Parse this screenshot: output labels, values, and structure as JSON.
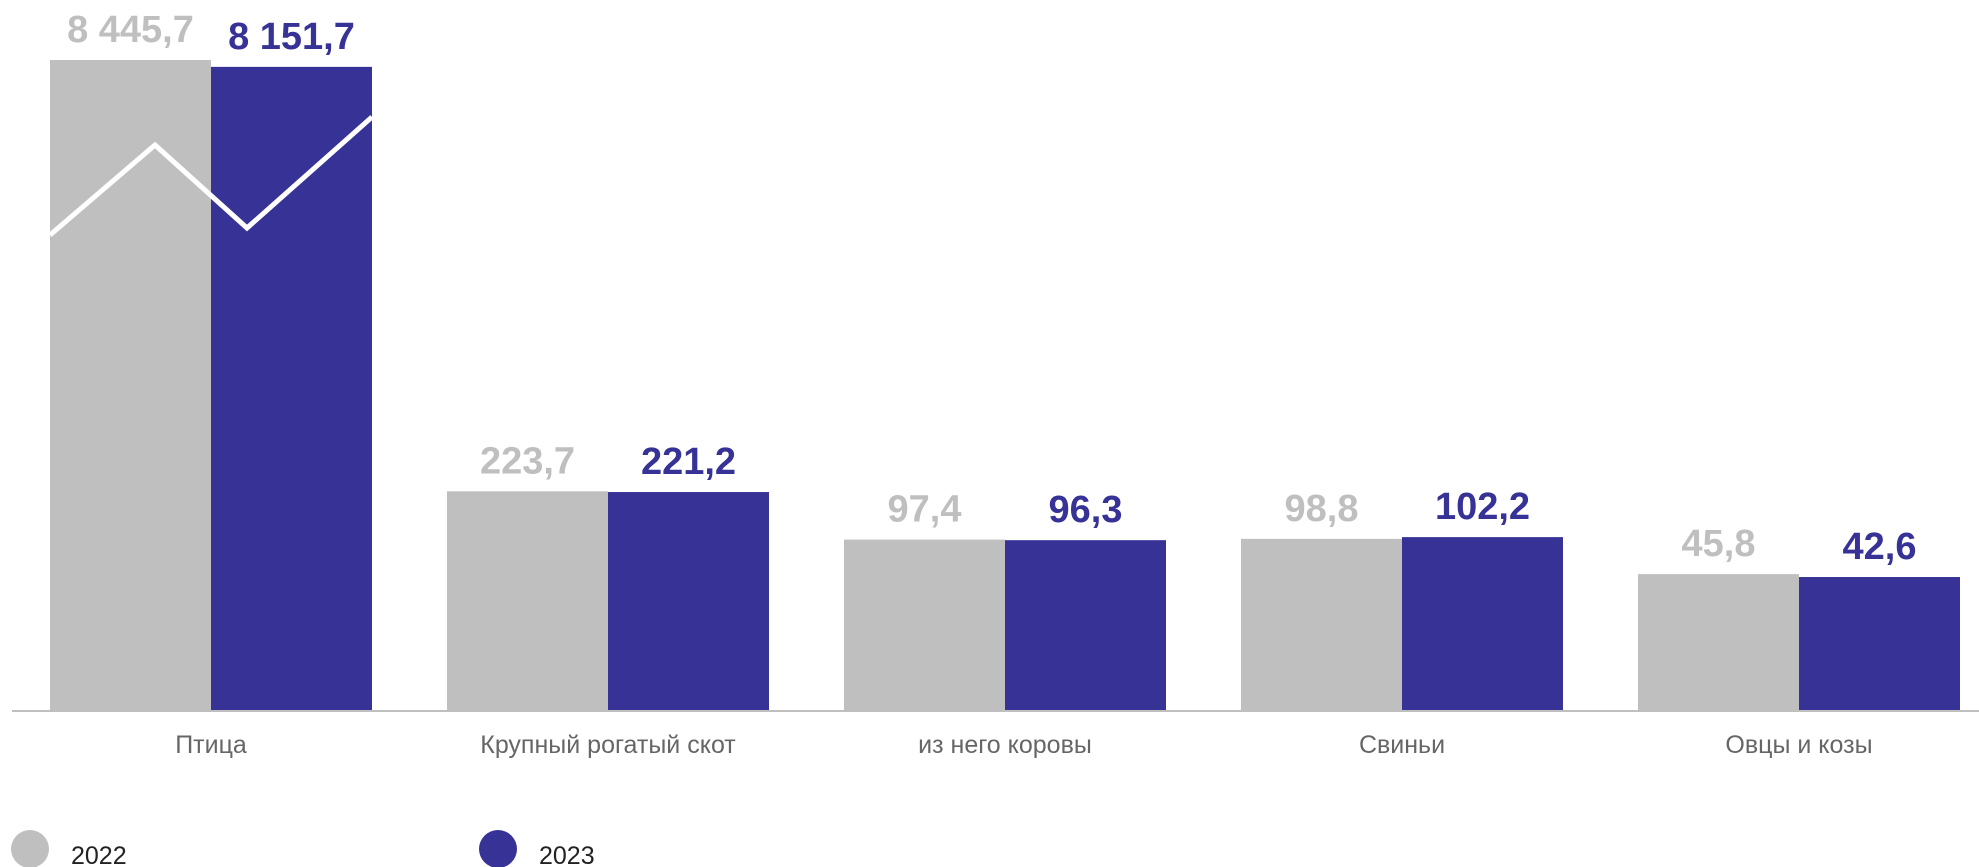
{
  "chart_data": {
    "type": "bar",
    "categories": [
      "Птица",
      "Крупный рогатый скот",
      "из него коровы",
      "Свиньи",
      "Овцы и козы"
    ],
    "series": [
      {
        "name": "2022",
        "values": [
          8445.7,
          223.7,
          97.4,
          98.8,
          45.8
        ],
        "labels": [
          "8 445,7",
          "223,7",
          "97,4",
          "98,8",
          "45,8"
        ],
        "color": "#bfbfbf"
      },
      {
        "name": "2023",
        "values": [
          8151.7,
          221.2,
          96.3,
          102.2,
          42.6
        ],
        "labels": [
          "8 151,7",
          "221,2",
          "96,3",
          "102,2",
          "42,6"
        ],
        "color": "#363296"
      }
    ],
    "legend_position": "bottom-left",
    "grid": false,
    "axis_line_color": "#bfbfbf",
    "overlay_line_color": "#ffffff"
  }
}
